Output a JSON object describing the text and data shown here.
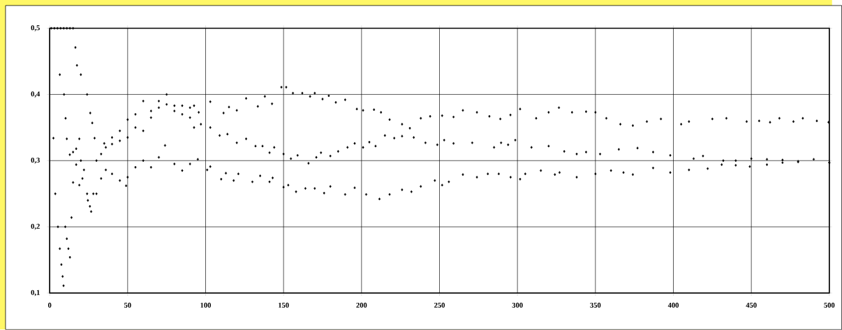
{
  "chart_data": {
    "type": "scatter",
    "marker": "diamond",
    "grid": true,
    "xlim": [
      0,
      500
    ],
    "xticks": [
      0,
      50,
      100,
      150,
      200,
      250,
      300,
      350,
      400,
      450,
      500
    ],
    "ylim": [
      0.1,
      0.5
    ],
    "yticks": [
      {
        "value": 0.1,
        "label": "0,1"
      },
      {
        "value": 0.2,
        "label": "0,2"
      },
      {
        "value": 0.3,
        "label": "0,3"
      },
      {
        "value": 0.4,
        "label": "0,4"
      },
      {
        "value": 0.5,
        "label": "0,5"
      }
    ],
    "series": [
      {
        "color": "#000000",
        "x": [
          1,
          3,
          5,
          7,
          9,
          11,
          13,
          15,
          16.5,
          17.5,
          20,
          24,
          26,
          27.3,
          28.8,
          35,
          40,
          45,
          50,
          55,
          60,
          65,
          70,
          75,
          80,
          85,
          90,
          92.6,
          95.6,
          103,
          111.5,
          115,
          120,
          126,
          133.5,
          138,
          142.6,
          148.6,
          151.7,
          156,
          162,
          167,
          170,
          175,
          179,
          183.5,
          189.5,
          197,
          201,
          208,
          212.5,
          218,
          226,
          231,
          238,
          244,
          251.7,
          259,
          265,
          274,
          282,
          289,
          295.5,
          301.7,
          312,
          320,
          326.6,
          335,
          344,
          350,
          357,
          366,
          374,
          383,
          392,
          405,
          410,
          425,
          434,
          447,
          455,
          462,
          468,
          477,
          483,
          492,
          499.5
        ],
        "values": [
          0.5,
          0.5,
          0.5,
          0.5,
          0.5,
          0.5,
          0.5,
          0.5,
          0.471,
          0.444,
          0.43,
          0.4,
          0.372,
          0.357,
          0.334,
          0.326,
          0.335,
          0.345,
          0.362,
          0.37,
          0.39,
          0.375,
          0.39,
          0.4,
          0.383,
          0.383,
          0.38,
          0.383,
          0.373,
          0.389,
          0.372,
          0.381,
          0.376,
          0.394,
          0.382,
          0.397,
          0.386,
          0.411,
          0.411,
          0.402,
          0.402,
          0.397,
          0.402,
          0.393,
          0.398,
          0.388,
          0.392,
          0.378,
          0.376,
          0.377,
          0.373,
          0.362,
          0.355,
          0.349,
          0.364,
          0.367,
          0.368,
          0.366,
          0.376,
          0.373,
          0.367,
          0.363,
          0.369,
          0.378,
          0.364,
          0.373,
          0.38,
          0.373,
          0.374,
          0.373,
          0.364,
          0.355,
          0.353,
          0.359,
          0.363,
          0.355,
          0.359,
          0.363,
          0.364,
          0.359,
          0.36,
          0.358,
          0.364,
          0.359,
          0.364,
          0.36,
          0.358
        ]
      },
      {
        "color": "#000000",
        "x": [
          2.4,
          6.5,
          9.2,
          10.2,
          11,
          12.9,
          15,
          17,
          19,
          20,
          22,
          24,
          28,
          30,
          33,
          36,
          40,
          45,
          50,
          55,
          60,
          65,
          70,
          75,
          80,
          85,
          90,
          92.6,
          97,
          103,
          109,
          114,
          120,
          126,
          132,
          136.5,
          141,
          144,
          150,
          154.7,
          159,
          166,
          171,
          174,
          180,
          185,
          191,
          195.6,
          201,
          205,
          209,
          215,
          221,
          226,
          233.5,
          241,
          248.6,
          253,
          259,
          271,
          285,
          289.5,
          294,
          298.6,
          309,
          320,
          330,
          338,
          344,
          353,
          365,
          377,
          387,
          398,
          413,
          419,
          432,
          440,
          449,
          460,
          470,
          480,
          500
        ],
        "values": [
          0.334,
          0.43,
          0.4,
          0.364,
          0.333,
          0.309,
          0.313,
          0.318,
          0.333,
          0.3,
          0.286,
          0.25,
          0.25,
          0.3,
          0.31,
          0.32,
          0.325,
          0.33,
          0.335,
          0.35,
          0.345,
          0.365,
          0.38,
          0.385,
          0.375,
          0.37,
          0.365,
          0.35,
          0.355,
          0.35,
          0.338,
          0.34,
          0.327,
          0.333,
          0.322,
          0.322,
          0.312,
          0.32,
          0.31,
          0.303,
          0.308,
          0.296,
          0.305,
          0.312,
          0.307,
          0.314,
          0.32,
          0.326,
          0.32,
          0.328,
          0.322,
          0.338,
          0.334,
          0.337,
          0.335,
          0.327,
          0.324,
          0.331,
          0.326,
          0.327,
          0.32,
          0.327,
          0.324,
          0.331,
          0.32,
          0.322,
          0.314,
          0.31,
          0.313,
          0.31,
          0.317,
          0.319,
          0.313,
          0.308,
          0.303,
          0.307,
          0.3,
          0.293,
          0.291,
          0.294,
          0.297,
          0.299,
          0.297
        ]
      },
      {
        "color": "#000000",
        "x": [
          3.6,
          5.3,
          6.5,
          7.5,
          8.3,
          8.9,
          10,
          11,
          12,
          13,
          14,
          15,
          17,
          19,
          21,
          24.5,
          25.8,
          26.6,
          30,
          33,
          36,
          40,
          45,
          49,
          50,
          55,
          60,
          65,
          70,
          74,
          80,
          85,
          90,
          95,
          101,
          103,
          110,
          113,
          118,
          121,
          130,
          135,
          141,
          143,
          150,
          153,
          158,
          164,
          170,
          176,
          180,
          189.5,
          195.6,
          203,
          211.5,
          218,
          226,
          232,
          238,
          247,
          251.7,
          256,
          265,
          274,
          281,
          288,
          295.6,
          301.7,
          305,
          315,
          324,
          327,
          338,
          350,
          360,
          368,
          374,
          387,
          398,
          410,
          422,
          431,
          440,
          450,
          460,
          470,
          480,
          490,
          500
        ],
        "values": [
          0.25,
          0.2,
          0.167,
          0.143,
          0.125,
          0.111,
          0.2,
          0.182,
          0.167,
          0.154,
          0.214,
          0.267,
          0.294,
          0.263,
          0.273,
          0.24,
          0.231,
          0.223,
          0.25,
          0.273,
          0.286,
          0.28,
          0.27,
          0.262,
          0.275,
          0.29,
          0.3,
          0.29,
          0.305,
          0.323,
          0.295,
          0.285,
          0.295,
          0.302,
          0.286,
          0.291,
          0.272,
          0.281,
          0.27,
          0.28,
          0.268,
          0.277,
          0.268,
          0.274,
          0.26,
          0.263,
          0.253,
          0.258,
          0.258,
          0.251,
          0.261,
          0.249,
          0.259,
          0.249,
          0.242,
          0.249,
          0.256,
          0.253,
          0.261,
          0.27,
          0.263,
          0.268,
          0.279,
          0.275,
          0.28,
          0.28,
          0.275,
          0.272,
          0.28,
          0.285,
          0.279,
          0.282,
          0.275,
          0.28,
          0.285,
          0.282,
          0.279,
          0.289,
          0.282,
          0.286,
          0.288,
          0.294,
          0.3,
          0.303,
          0.302,
          0.301,
          0.298,
          0.302,
          0.297
        ]
      }
    ]
  }
}
